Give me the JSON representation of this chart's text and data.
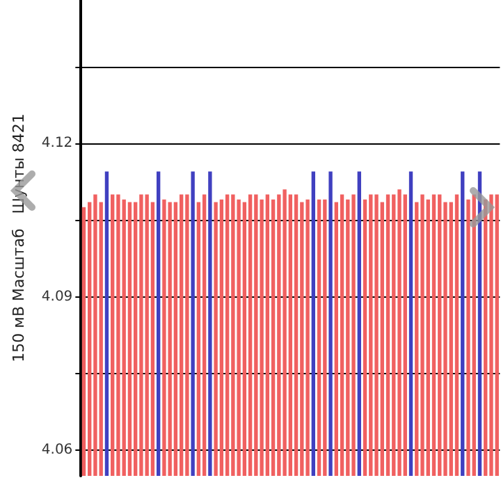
{
  "chart_data": {
    "type": "bar",
    "ylabel": "150 мВ Масштаб   Шунты 8421",
    "categories": [
      null,
      null,
      null,
      null,
      null,
      null,
      null,
      null,
      null,
      null,
      null,
      null,
      null,
      null,
      null,
      null,
      null,
      null,
      null,
      null,
      null,
      null,
      null,
      null,
      null,
      null,
      null,
      null,
      null,
      null,
      null,
      null,
      null,
      null,
      null,
      null,
      null,
      null,
      null,
      null,
      null,
      null,
      null,
      null,
      null,
      null,
      null,
      null,
      null,
      null,
      null,
      null,
      null,
      null,
      null,
      null,
      null,
      null,
      null,
      null,
      null,
      null,
      null,
      null,
      null,
      null,
      null,
      null,
      null,
      null,
      null,
      null,
      null
    ],
    "values": [
      4.1075,
      4.1085,
      4.11,
      4.1085,
      4.1145,
      4.11,
      4.11,
      4.109,
      4.1085,
      4.1085,
      4.11,
      4.11,
      4.1085,
      4.1145,
      4.109,
      4.1085,
      4.1085,
      4.11,
      4.11,
      4.1145,
      4.1085,
      4.11,
      4.1145,
      4.1085,
      4.109,
      4.11,
      4.11,
      4.109,
      4.1085,
      4.11,
      4.11,
      4.109,
      4.11,
      4.109,
      4.11,
      4.111,
      4.11,
      4.11,
      4.1085,
      4.109,
      4.1145,
      4.109,
      4.109,
      4.1145,
      4.1085,
      4.11,
      4.109,
      4.11,
      4.1145,
      4.109,
      4.11,
      4.11,
      4.1085,
      4.11,
      4.11,
      4.111,
      4.11,
      4.1145,
      4.1085,
      4.11,
      4.109,
      4.11,
      4.11,
      4.1085,
      4.1085,
      4.11,
      4.1145,
      4.109,
      4.11,
      4.1145,
      4.109,
      4.11,
      4.11
    ],
    "colors": [
      "#f06060",
      "#f06060",
      "#f06060",
      "#f06060",
      "#4040c0",
      "#f06060",
      "#f06060",
      "#f06060",
      "#f06060",
      "#f06060",
      "#f06060",
      "#f06060",
      "#f06060",
      "#4040c0",
      "#f06060",
      "#f06060",
      "#f06060",
      "#f06060",
      "#f06060",
      "#4040c0",
      "#f06060",
      "#f06060",
      "#4040c0",
      "#f06060",
      "#f06060",
      "#f06060",
      "#f06060",
      "#f06060",
      "#f06060",
      "#f06060",
      "#f06060",
      "#f06060",
      "#f06060",
      "#f06060",
      "#f06060",
      "#f06060",
      "#f06060",
      "#f06060",
      "#f06060",
      "#f06060",
      "#4040c0",
      "#f06060",
      "#f06060",
      "#4040c0",
      "#f06060",
      "#f06060",
      "#f06060",
      "#f06060",
      "#4040c0",
      "#f06060",
      "#f06060",
      "#f06060",
      "#f06060",
      "#f06060",
      "#f06060",
      "#f06060",
      "#f06060",
      "#4040c0",
      "#f06060",
      "#f06060",
      "#f06060",
      "#f06060",
      "#f06060",
      "#f06060",
      "#f06060",
      "#f06060",
      "#4040c0",
      "#f06060",
      "#f06060",
      "#4040c0",
      "#f06060",
      "#f06060",
      "#f06060"
    ],
    "ylim": [
      4.055,
      4.148
    ],
    "yticks": [
      4.06,
      {
        "value": 4.075,
        "label": null
      },
      4.09,
      {
        "value": 4.105,
        "label": null
      },
      4.12,
      {
        "value": 4.135,
        "label": null
      }
    ],
    "grid": "y"
  }
}
